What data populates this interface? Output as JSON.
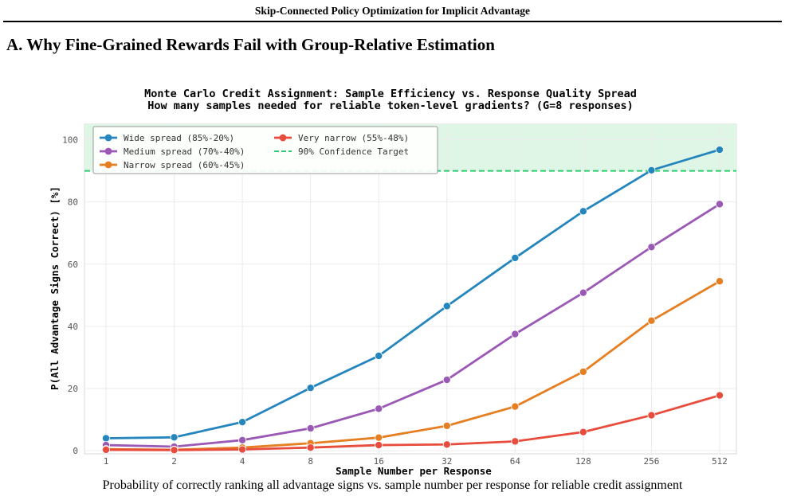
{
  "page": {
    "running_header": "Skip-Connected Policy Optimization for Implicit Advantage",
    "section_heading": "A. Why Fine-Grained Rewards Fail with Group-Relative Estimation",
    "caption": "Probability of correctly ranking all advantage signs vs. sample number per response for reliable credit assignment"
  },
  "chart_data": {
    "type": "line",
    "title": "Monte Carlo Credit Assignment: Sample Efficiency vs. Response Quality Spread",
    "subtitle": "How many samples needed for reliable token-level gradients? (G=8 responses)",
    "xlabel": "Sample Number per Response",
    "ylabel": "P(All Advantage Signs Correct) [%]",
    "x_scale": "log2",
    "x": [
      1,
      2,
      4,
      8,
      16,
      32,
      64,
      128,
      256,
      512
    ],
    "x_tick_labels": [
      "1",
      "2",
      "4",
      "8",
      "16",
      "32",
      "64",
      "128",
      "256",
      "512"
    ],
    "y_ticks": [
      0,
      20,
      40,
      60,
      80,
      100
    ],
    "ylim": [
      -1,
      105
    ],
    "grid": true,
    "legend_position": "top-left",
    "series": [
      {
        "name": "Wide spread (85%-20%)",
        "color": "#2586bd",
        "values": [
          4.0,
          4.3,
          9.2,
          20.2,
          30.5,
          46.5,
          62.0,
          77.0,
          90.2,
          96.8
        ]
      },
      {
        "name": "Medium spread (70%-40%)",
        "color": "#9b59b6",
        "values": [
          1.8,
          1.3,
          3.4,
          7.2,
          13.5,
          22.8,
          37.5,
          50.8,
          65.5,
          79.3
        ]
      },
      {
        "name": "Narrow spread (60%-45%)",
        "color": "#e67e22",
        "values": [
          0.5,
          0.3,
          1.0,
          2.4,
          4.2,
          8.0,
          14.2,
          25.4,
          41.8,
          54.5
        ]
      },
      {
        "name": "Very narrow (55%-48%)",
        "color": "#e74c3c",
        "values": [
          0.3,
          0.2,
          0.4,
          1.0,
          1.8,
          2.0,
          3.0,
          6.0,
          11.4,
          17.8
        ]
      }
    ],
    "reference_line": {
      "name": "90% Confidence Target",
      "y": 90,
      "color": "#2ecc71",
      "shade_color": "#dff6e6"
    }
  }
}
